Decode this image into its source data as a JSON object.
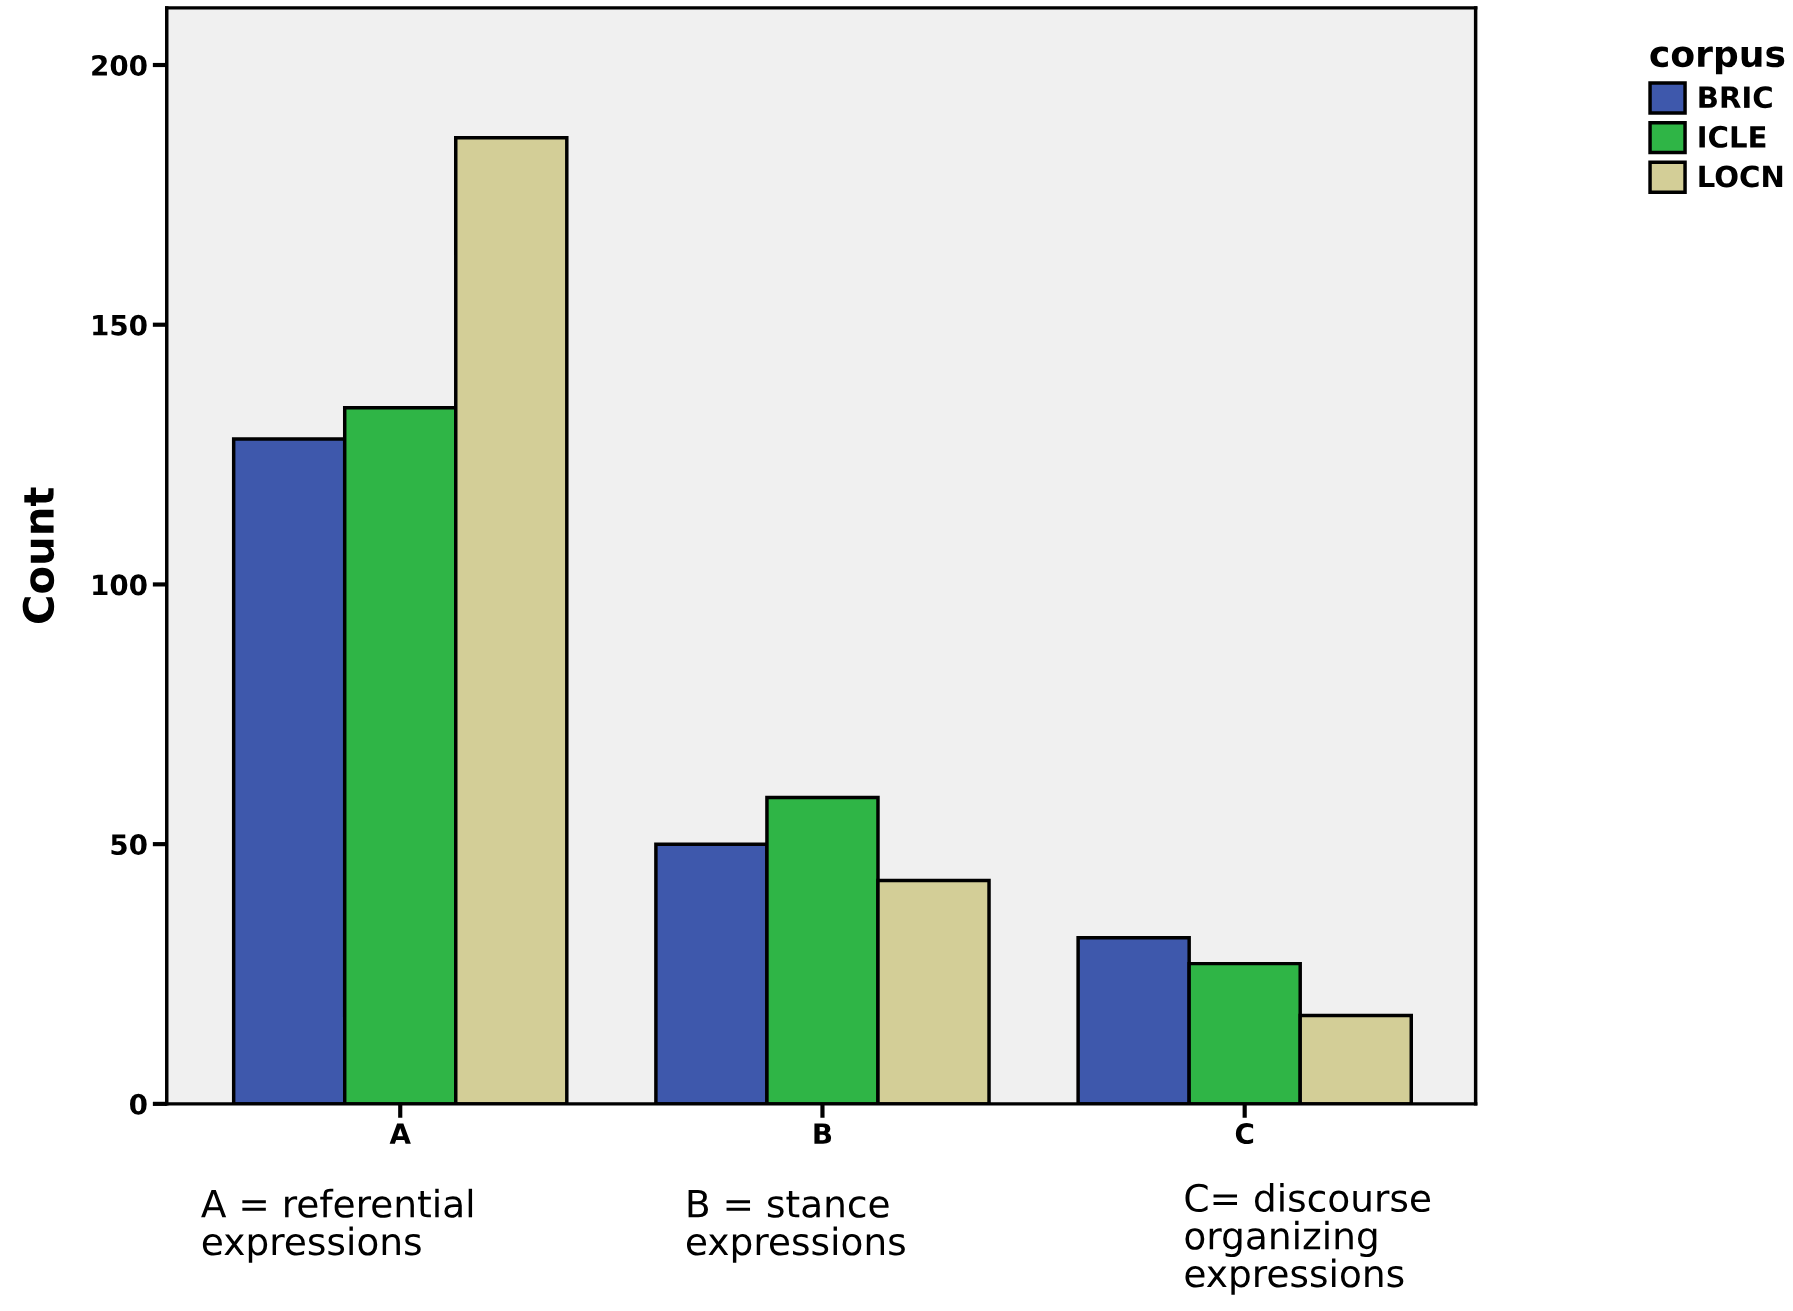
{
  "chart_data": {
    "type": "bar",
    "ylabel": "Count",
    "legend_title": "corpus",
    "categories": [
      "A",
      "B",
      "C"
    ],
    "series": [
      {
        "name": "BRIC",
        "color": "#3e58ac",
        "values": [
          128,
          50,
          32
        ]
      },
      {
        "name": "ICLE",
        "color": "#2fb546",
        "values": [
          134,
          59,
          27
        ]
      },
      {
        "name": "LOCN",
        "color": "#d3ce97",
        "values": [
          186,
          43,
          17
        ]
      }
    ],
    "ylim": [
      0,
      211
    ],
    "yticks": [
      0,
      50,
      100,
      150,
      200
    ],
    "grid": false,
    "legend": "top right",
    "annotations": [
      "A = referential\nexpressions",
      "B = stance\nexpressions",
      "C= discourse\norganizing\nexpressions"
    ]
  }
}
